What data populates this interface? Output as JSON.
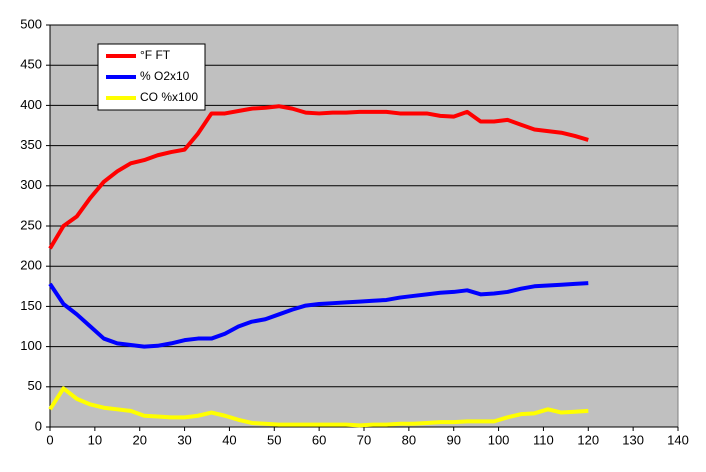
{
  "chart_data": {
    "type": "line",
    "x": [
      0,
      3,
      6,
      9,
      12,
      15,
      18,
      21,
      24,
      27,
      30,
      33,
      36,
      39,
      42,
      45,
      48,
      51,
      54,
      57,
      60,
      63,
      66,
      69,
      72,
      75,
      78,
      81,
      84,
      87,
      90,
      93,
      96,
      99,
      102,
      105,
      108,
      111,
      114,
      117,
      120
    ],
    "series": [
      {
        "name": "°F FT",
        "color": "#ff0000",
        "values": [
          222,
          250,
          262,
          285,
          305,
          318,
          328,
          332,
          338,
          342,
          345,
          365,
          390,
          390,
          393,
          396,
          397,
          399,
          396,
          391,
          390,
          391,
          391,
          392,
          392,
          392,
          390,
          390,
          390,
          387,
          386,
          392,
          380,
          380,
          382,
          376,
          370,
          368,
          366,
          362,
          357
        ]
      },
      {
        "name": "% O2x10",
        "color": "#0000ff",
        "values": [
          178,
          153,
          140,
          125,
          110,
          104,
          102,
          100,
          101,
          104,
          108,
          110,
          110,
          116,
          125,
          131,
          134,
          140,
          146,
          151,
          153,
          154,
          155,
          156,
          157,
          158,
          161,
          163,
          165,
          167,
          168,
          170,
          165,
          166,
          168,
          172,
          175,
          176,
          177,
          178,
          179
        ]
      },
      {
        "name": "CO %x100",
        "color": "#ffff00",
        "values": [
          22,
          48,
          35,
          28,
          24,
          22,
          20,
          14,
          13,
          12,
          12,
          14,
          18,
          14,
          9,
          5,
          4,
          3,
          3,
          3,
          3,
          3,
          3,
          2,
          3,
          3,
          4,
          4,
          5,
          6,
          6,
          7,
          7,
          7,
          12,
          16,
          17,
          22,
          18,
          19,
          20
        ]
      }
    ],
    "xlim": [
      0,
      140
    ],
    "xticks": [
      0,
      10,
      20,
      30,
      40,
      50,
      60,
      70,
      80,
      90,
      100,
      110,
      120,
      130,
      140
    ],
    "ylim": [
      0,
      500
    ],
    "yticks": [
      0,
      50,
      100,
      150,
      200,
      250,
      300,
      350,
      400,
      450,
      500
    ],
    "grid": true,
    "legend": "top-left"
  }
}
